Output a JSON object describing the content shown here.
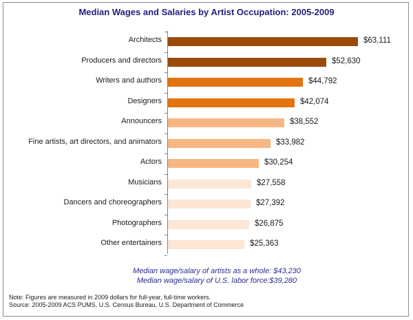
{
  "chart_data": {
    "type": "bar",
    "orientation": "horizontal",
    "title": "Median Wages and Salaries by Artist Occupation: 2005-2009",
    "xlabel": "",
    "ylabel": "",
    "categories": [
      "Architects",
      "Producers and directors",
      "Writers and authors",
      "Designers",
      "Announcers",
      "Fine artists, art directors, and animators",
      "Actors",
      "Musicians",
      "Dancers and choreographers",
      "Photographers",
      "Other entertainers"
    ],
    "values": [
      63111,
      52630,
      44792,
      42074,
      38552,
      33982,
      30254,
      27558,
      27392,
      26875,
      25363
    ],
    "value_labels": [
      "$63,111",
      "$52,630",
      "$44,792",
      "$42,074",
      "$38,552",
      "$33,982",
      "$30,254",
      "$27,558",
      "$27,392",
      "$26,875",
      "$25,363"
    ],
    "colors": [
      "#9c4a0a",
      "#9c4a0a",
      "#e3730f",
      "#e3730f",
      "#f6b785",
      "#f6b785",
      "#f6b785",
      "#fce6d6",
      "#fce6d6",
      "#fce6d6",
      "#fce6d6"
    ],
    "grid": false,
    "legend": null,
    "annotations": [
      "Median wage/salary  of artists as a whole:  $43,230",
      "Median wage/salary  of U.S. labor force:$39,280"
    ]
  },
  "title": "Median Wages and Salaries by Artist Occupation: 2005-2009",
  "summary": {
    "artists": "Median wage/salary  of artists as a whole:  $43,230",
    "labor_force": "Median wage/salary  of U.S. labor force:$39,280"
  },
  "footnotes": {
    "note": "Note: Figures are measured in 2009 dollars for full-year, full-time workers.",
    "source": "Source:  2005-2009 ACS PUMS, U.S. Census Bureau, U.S. Department of Commerce"
  }
}
